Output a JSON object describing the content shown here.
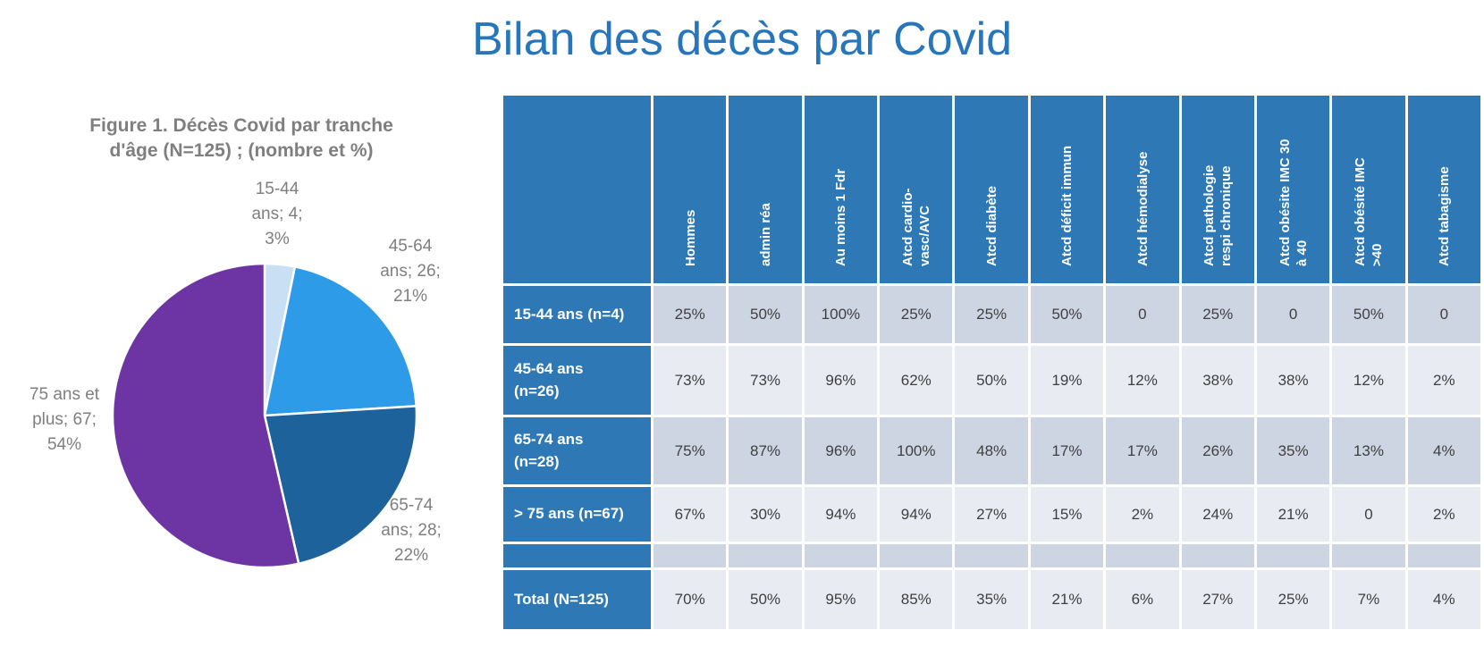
{
  "page": {
    "title": "Bilan des décès par Covid"
  },
  "colors": {
    "title_blue": "#2776BC",
    "table_header_blue": "#2E79B5",
    "row_band_dark": "#CDD5E3",
    "row_band_light": "#E9EBF3",
    "cell_text": "#3F3F3F",
    "figure_text_gray": "#7F7F7F"
  },
  "chart_data": {
    "type": "pie",
    "title": "Figure 1. Décès Covid par tranche\nd'âge (N=125) ; (nombre et %)",
    "total_n": 125,
    "legend_position": "callout-labels-around-pie",
    "slices": [
      {
        "label": "15-44 ans",
        "count": 4,
        "pct": "3%",
        "color": "#C9DFF4",
        "callout": "15-44\nans; 4;\n3%"
      },
      {
        "label": "45-64 ans",
        "count": 26,
        "pct": "21%",
        "color": "#2E9BE9",
        "callout": "45-64\nans; 26;\n21%"
      },
      {
        "label": "65-74 ans",
        "count": 28,
        "pct": "22%",
        "color": "#1E629B",
        "callout": "65-74\nans; 28;\n22%"
      },
      {
        "label": "75 ans et plus",
        "count": 67,
        "pct": "54%",
        "color": "#6C35A3",
        "callout": "75 ans et\nplus; 67;\n54%"
      }
    ]
  },
  "table": {
    "corner_label": "",
    "columns": [
      "Hommes",
      "admin réa",
      "Au moins 1 Fdr",
      "Atcd cardio-\nvasc/AVC",
      "Atcd diabète",
      "Atcd déficit immun",
      "Atcd hémodialyse",
      "Atcd pathologie\nrespi chronique",
      "Atcd obésite IMC 30\nà 40",
      "Atcd obésité IMC\n>40",
      "Atcd tabagisme"
    ],
    "rows": [
      {
        "label": "15-44 ans (n=4)",
        "values": [
          "25%",
          "50%",
          "100%",
          "25%",
          "25%",
          "50%",
          "0",
          "25%",
          "0",
          "50%",
          "0"
        ]
      },
      {
        "label": "45-64 ans\n(n=26)",
        "values": [
          "73%",
          "73%",
          "96%",
          "62%",
          "50%",
          "19%",
          "12%",
          "38%",
          "38%",
          "12%",
          "2%"
        ]
      },
      {
        "label": "65-74 ans\n(n=28)",
        "values": [
          "75%",
          "87%",
          "96%",
          "100%",
          "48%",
          "17%",
          "17%",
          "26%",
          "35%",
          "13%",
          "4%"
        ]
      },
      {
        "label": "> 75 ans (n=67)",
        "values": [
          "67%",
          "30%",
          "94%",
          "94%",
          "27%",
          "15%",
          "2%",
          "24%",
          "21%",
          "0",
          "2%"
        ]
      },
      {
        "label": "",
        "values": [
          "",
          "",
          "",
          "",
          "",
          "",
          "",
          "",
          "",
          "",
          ""
        ]
      },
      {
        "label": "Total (N=125)",
        "values": [
          "70%",
          "50%",
          "95%",
          "85%",
          "35%",
          "21%",
          "6%",
          "27%",
          "25%",
          "7%",
          "4%"
        ]
      }
    ]
  }
}
